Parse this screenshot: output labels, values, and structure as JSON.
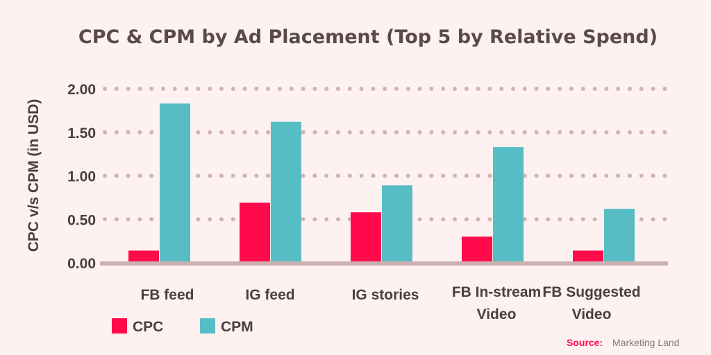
{
  "chart_data": {
    "type": "bar",
    "title": "CPC & CPM by Ad Placement (Top 5 by Relative Spend)",
    "xlabel": "",
    "ylabel": "CPC v/s CPM (in USD)",
    "ylim": [
      0,
      2
    ],
    "yticks": [
      "0.00",
      "0.50",
      "1.00",
      "1.50",
      "2.00"
    ],
    "grid": true,
    "legend_position": "bottom-left",
    "categories": [
      [
        "FB feed"
      ],
      [
        "IG feed"
      ],
      [
        "IG stories"
      ],
      [
        "FB In-stream",
        "Video"
      ],
      [
        "FB Suggested",
        "Video"
      ]
    ],
    "series": [
      {
        "name": "CPC",
        "color": "#ff0a4a",
        "values": [
          0.14,
          0.69,
          0.58,
          0.3,
          0.14
        ]
      },
      {
        "name": "CPM",
        "color": "#57bdc4",
        "values": [
          1.83,
          1.62,
          0.89,
          1.33,
          0.62
        ]
      }
    ]
  },
  "source": {
    "label": "Source:",
    "value": "Marketing Land"
  }
}
